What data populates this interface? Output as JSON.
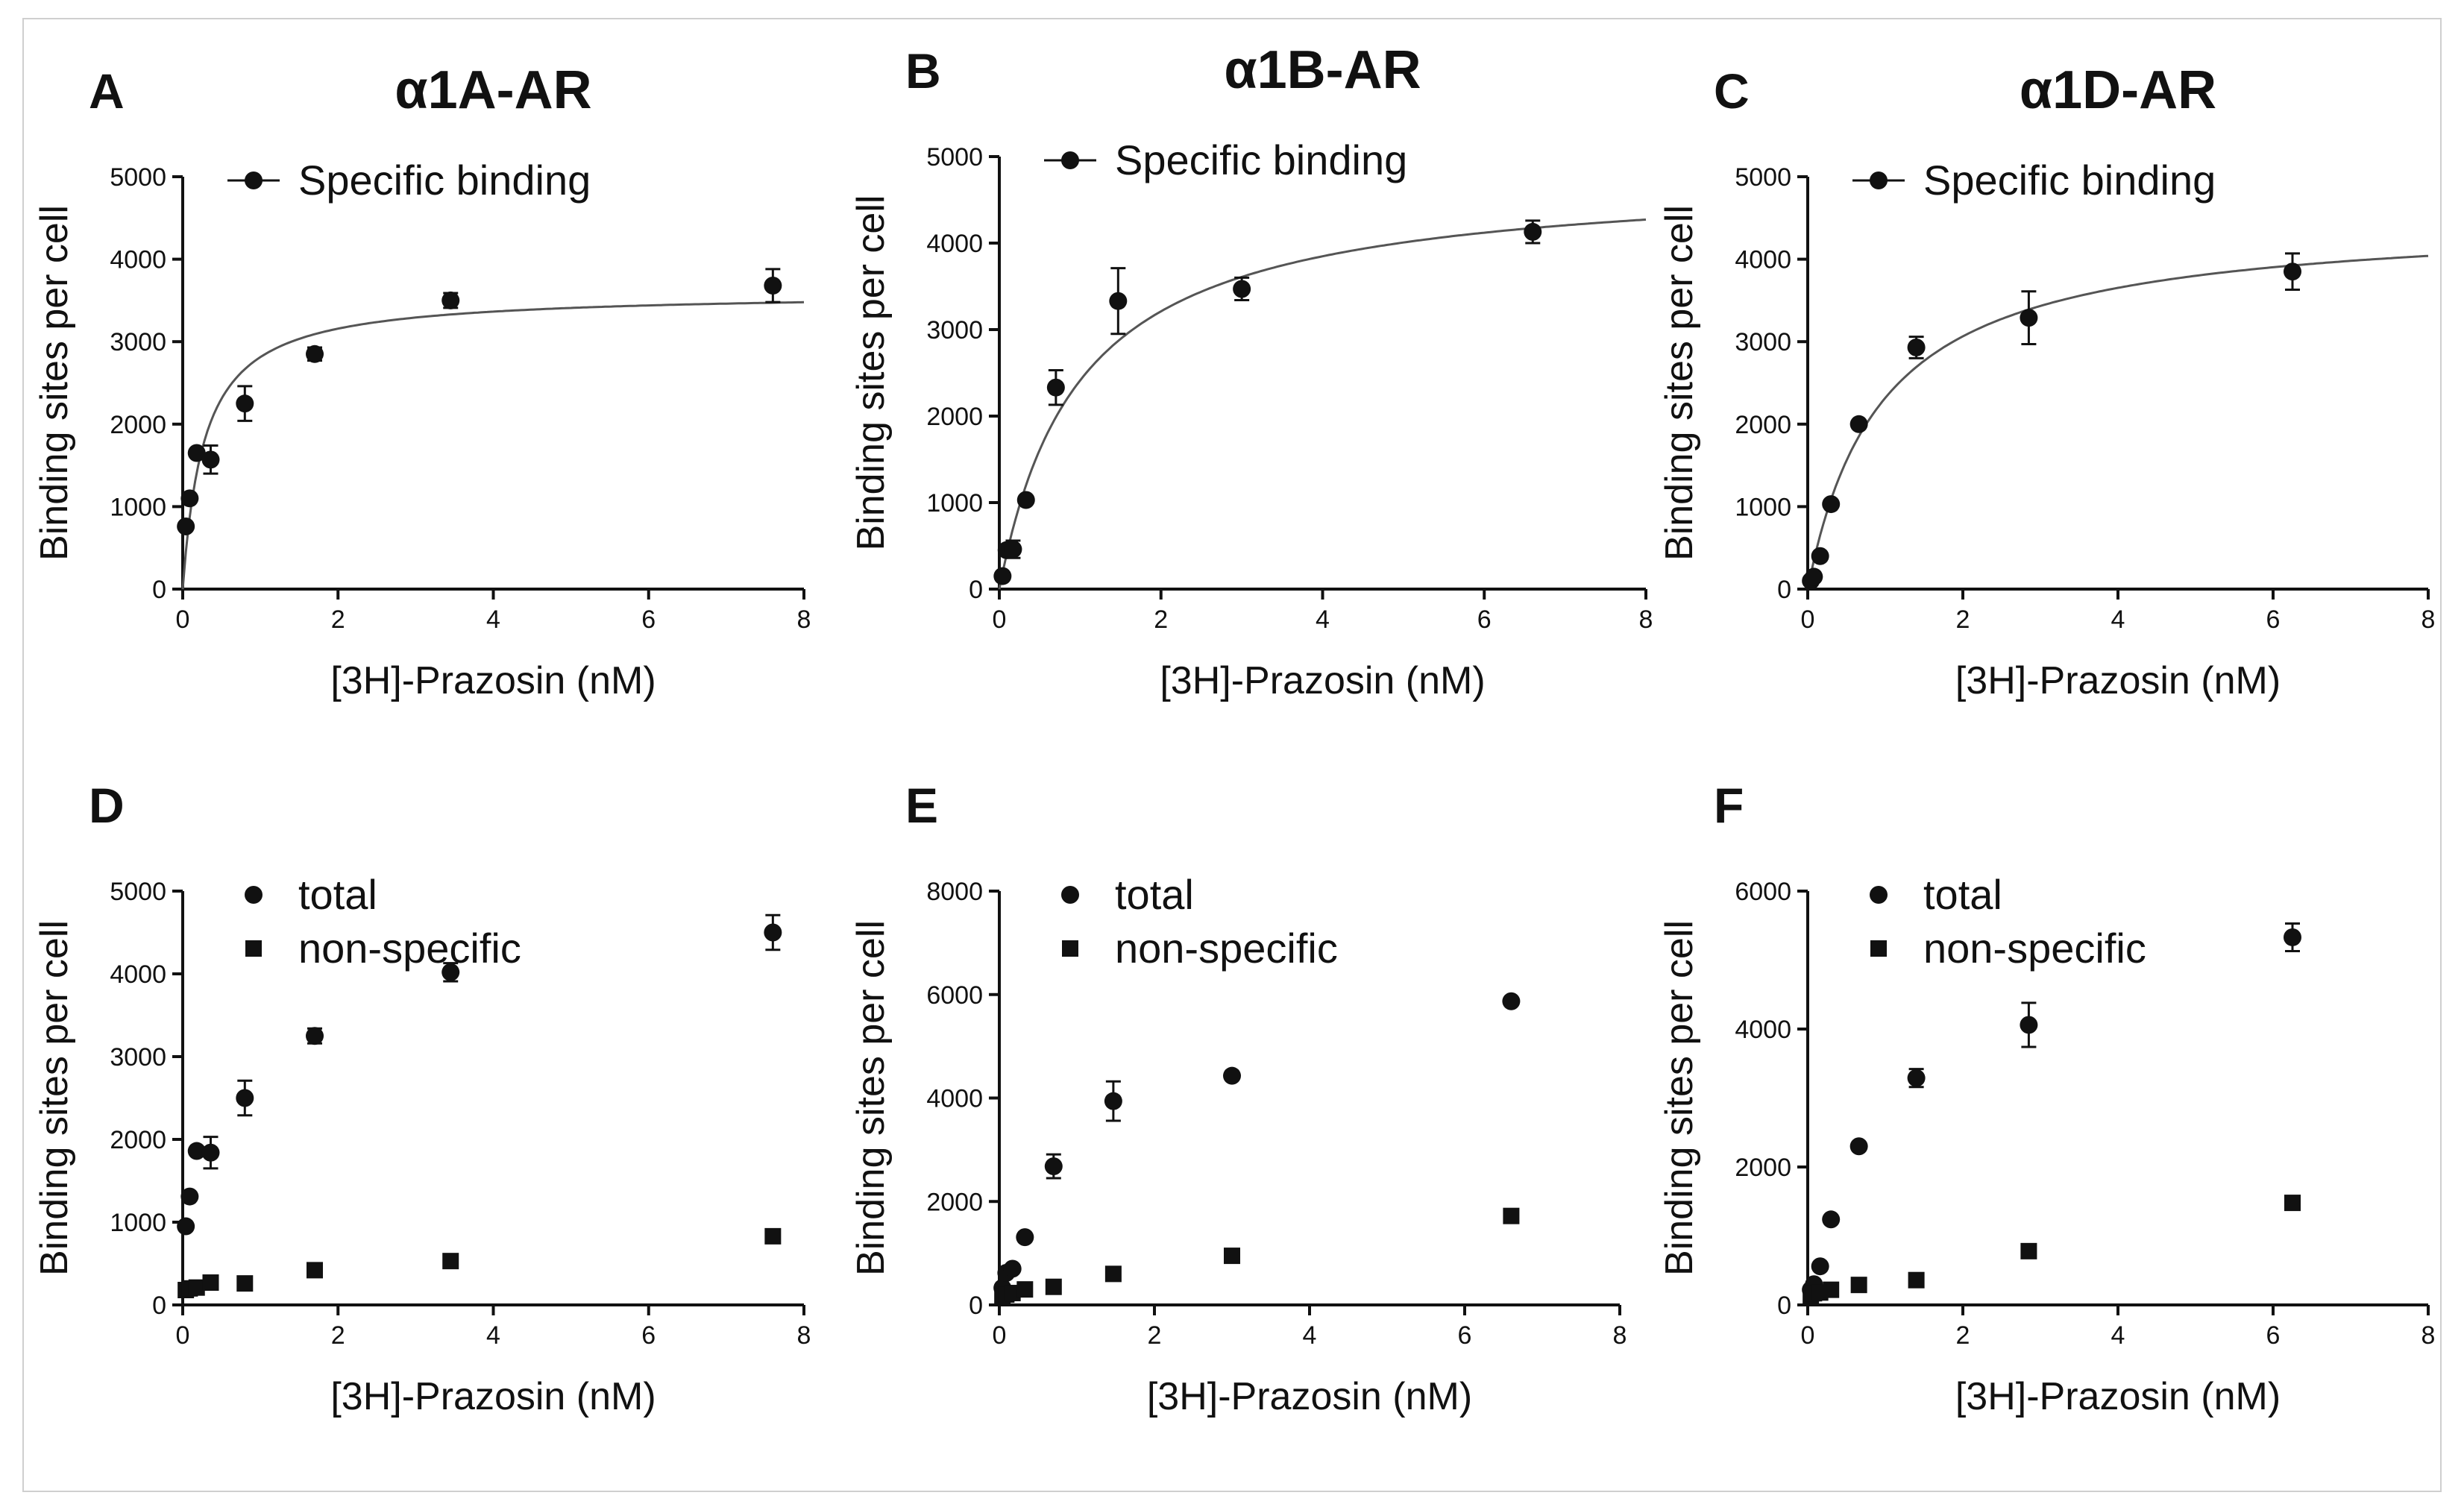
{
  "colors": {
    "marker": "#111111",
    "axis": "#111111",
    "fit_line": "#555555",
    "frame": "#cfcfcf"
  },
  "chart_data": [
    {
      "panel": "A",
      "title": "α1A-AR",
      "type": "scatter",
      "xlabel": "[3H]-Prazosin (nM)",
      "ylabel": "Binding sites per cell",
      "xlim": [
        0,
        8
      ],
      "ylim": [
        0,
        5000
      ],
      "xticks": [
        0,
        2,
        4,
        6,
        8
      ],
      "yticks": [
        0,
        1000,
        2000,
        3000,
        4000,
        5000
      ],
      "legend_position": "top-left",
      "fit": {
        "model": "one-site",
        "bmax": 3600,
        "kd": 0.28
      },
      "series": [
        {
          "name": "Specific binding",
          "marker": "circle",
          "line": true,
          "x": [
            0.04,
            0.09,
            0.18,
            0.36,
            0.8,
            1.7,
            3.45,
            7.6
          ],
          "y": [
            760,
            1100,
            1650,
            1570,
            2250,
            2850,
            3500,
            3680
          ],
          "err": [
            0,
            0,
            0,
            170,
            210,
            80,
            90,
            200
          ]
        }
      ]
    },
    {
      "panel": "B",
      "title": "α1B-AR",
      "type": "scatter",
      "xlabel": "[3H]-Prazosin (nM)",
      "ylabel": "Binding sites per cell",
      "xlim": [
        0,
        8
      ],
      "ylim": [
        0,
        5000
      ],
      "xticks": [
        0,
        2,
        4,
        6,
        8
      ],
      "yticks": [
        0,
        1000,
        2000,
        3000,
        4000,
        5000
      ],
      "legend_position": "top-left",
      "fit": {
        "model": "one-site",
        "bmax": 4800,
        "kd": 0.99
      },
      "series": [
        {
          "name": "Specific binding",
          "marker": "circle",
          "line": true,
          "x": [
            0.04,
            0.09,
            0.17,
            0.33,
            0.7,
            1.47,
            3.0,
            6.6
          ],
          "y": [
            150,
            450,
            460,
            1030,
            2330,
            3330,
            3470,
            4130
          ],
          "err": [
            0,
            0,
            100,
            0,
            200,
            380,
            130,
            130
          ]
        }
      ]
    },
    {
      "panel": "C",
      "title": "α1D-AR",
      "type": "scatter",
      "xlabel": "[3H]-Prazosin (nM)",
      "ylabel": "Binding sites per cell",
      "xlim": [
        0,
        8
      ],
      "ylim": [
        0,
        5000
      ],
      "xticks": [
        0,
        2,
        4,
        6,
        8
      ],
      "yticks": [
        0,
        1000,
        2000,
        3000,
        4000,
        5000
      ],
      "legend_position": "top-left",
      "fit": {
        "model": "one-site",
        "bmax": 4520,
        "kd": 0.95
      },
      "series": [
        {
          "name": "Specific binding",
          "marker": "circle",
          "line": true,
          "x": [
            0.04,
            0.08,
            0.16,
            0.3,
            0.66,
            1.4,
            2.85,
            6.25
          ],
          "y": [
            100,
            150,
            400,
            1030,
            2000,
            2930,
            3290,
            3850
          ],
          "err": [
            0,
            0,
            0,
            0,
            0,
            130,
            320,
            220
          ]
        }
      ]
    },
    {
      "panel": "D",
      "title": "",
      "type": "scatter",
      "xlabel": "[3H]-Prazosin (nM)",
      "ylabel": "Binding sites per cell",
      "xlim": [
        0,
        8
      ],
      "ylim": [
        0,
        5000
      ],
      "xticks": [
        0,
        2,
        4,
        6,
        8
      ],
      "yticks": [
        0,
        1000,
        2000,
        3000,
        4000,
        5000
      ],
      "legend_position": "top-left",
      "series": [
        {
          "name": "total",
          "marker": "circle",
          "line": false,
          "x": [
            0.04,
            0.09,
            0.18,
            0.36,
            0.8,
            1.7,
            3.45,
            7.6
          ],
          "y": [
            950,
            1310,
            1860,
            1840,
            2500,
            3250,
            4020,
            4500
          ],
          "err": [
            0,
            0,
            0,
            190,
            210,
            90,
            110,
            210
          ]
        },
        {
          "name": "non-specific",
          "marker": "square",
          "line": false,
          "x": [
            0.04,
            0.09,
            0.18,
            0.36,
            0.8,
            1.7,
            3.45,
            7.6
          ],
          "y": [
            180,
            200,
            210,
            270,
            260,
            420,
            530,
            830
          ],
          "err": [
            0,
            0,
            0,
            0,
            0,
            0,
            0,
            0
          ]
        }
      ]
    },
    {
      "panel": "E",
      "title": "",
      "type": "scatter",
      "xlabel": "[3H]-Prazosin (nM)",
      "ylabel": "Binding sites per cell",
      "xlim": [
        0,
        8
      ],
      "ylim": [
        0,
        8000
      ],
      "xticks": [
        0,
        2,
        4,
        6,
        8
      ],
      "yticks": [
        0,
        2000,
        4000,
        6000,
        8000
      ],
      "legend_position": "top-left",
      "series": [
        {
          "name": "total",
          "marker": "circle",
          "line": false,
          "x": [
            0.04,
            0.09,
            0.17,
            0.33,
            0.7,
            1.47,
            3.0,
            6.6
          ],
          "y": [
            330,
            620,
            700,
            1310,
            2680,
            3940,
            4430,
            5870
          ],
          "err": [
            0,
            0,
            0,
            0,
            230,
            380,
            0,
            0
          ]
        },
        {
          "name": "non-specific",
          "marker": "square",
          "line": false,
          "x": [
            0.04,
            0.09,
            0.17,
            0.33,
            0.7,
            1.47,
            3.0,
            6.6
          ],
          "y": [
            160,
            200,
            230,
            300,
            350,
            600,
            950,
            1720
          ],
          "err": [
            0,
            0,
            0,
            0,
            0,
            0,
            0,
            0
          ]
        }
      ]
    },
    {
      "panel": "F",
      "title": "",
      "type": "scatter",
      "xlabel": "[3H]-Prazosin (nM)",
      "ylabel": "Binding sites per cell",
      "xlim": [
        0,
        8
      ],
      "ylim": [
        0,
        6000
      ],
      "xticks": [
        0,
        2,
        4,
        6,
        8
      ],
      "yticks": [
        0,
        2000,
        4000,
        6000
      ],
      "legend_position": "top-left",
      "series": [
        {
          "name": "total",
          "marker": "circle",
          "line": false,
          "x": [
            0.04,
            0.08,
            0.16,
            0.3,
            0.66,
            1.4,
            2.85,
            6.25
          ],
          "y": [
            220,
            300,
            560,
            1240,
            2300,
            3290,
            4060,
            5330
          ],
          "err": [
            0,
            0,
            0,
            0,
            0,
            130,
            320,
            200
          ]
        },
        {
          "name": "non-specific",
          "marker": "square",
          "line": false,
          "x": [
            0.04,
            0.08,
            0.16,
            0.3,
            0.66,
            1.4,
            2.85,
            6.25
          ],
          "y": [
            140,
            170,
            180,
            220,
            290,
            360,
            780,
            1480
          ],
          "err": [
            0,
            0,
            0,
            0,
            0,
            0,
            0,
            0
          ]
        }
      ]
    }
  ]
}
